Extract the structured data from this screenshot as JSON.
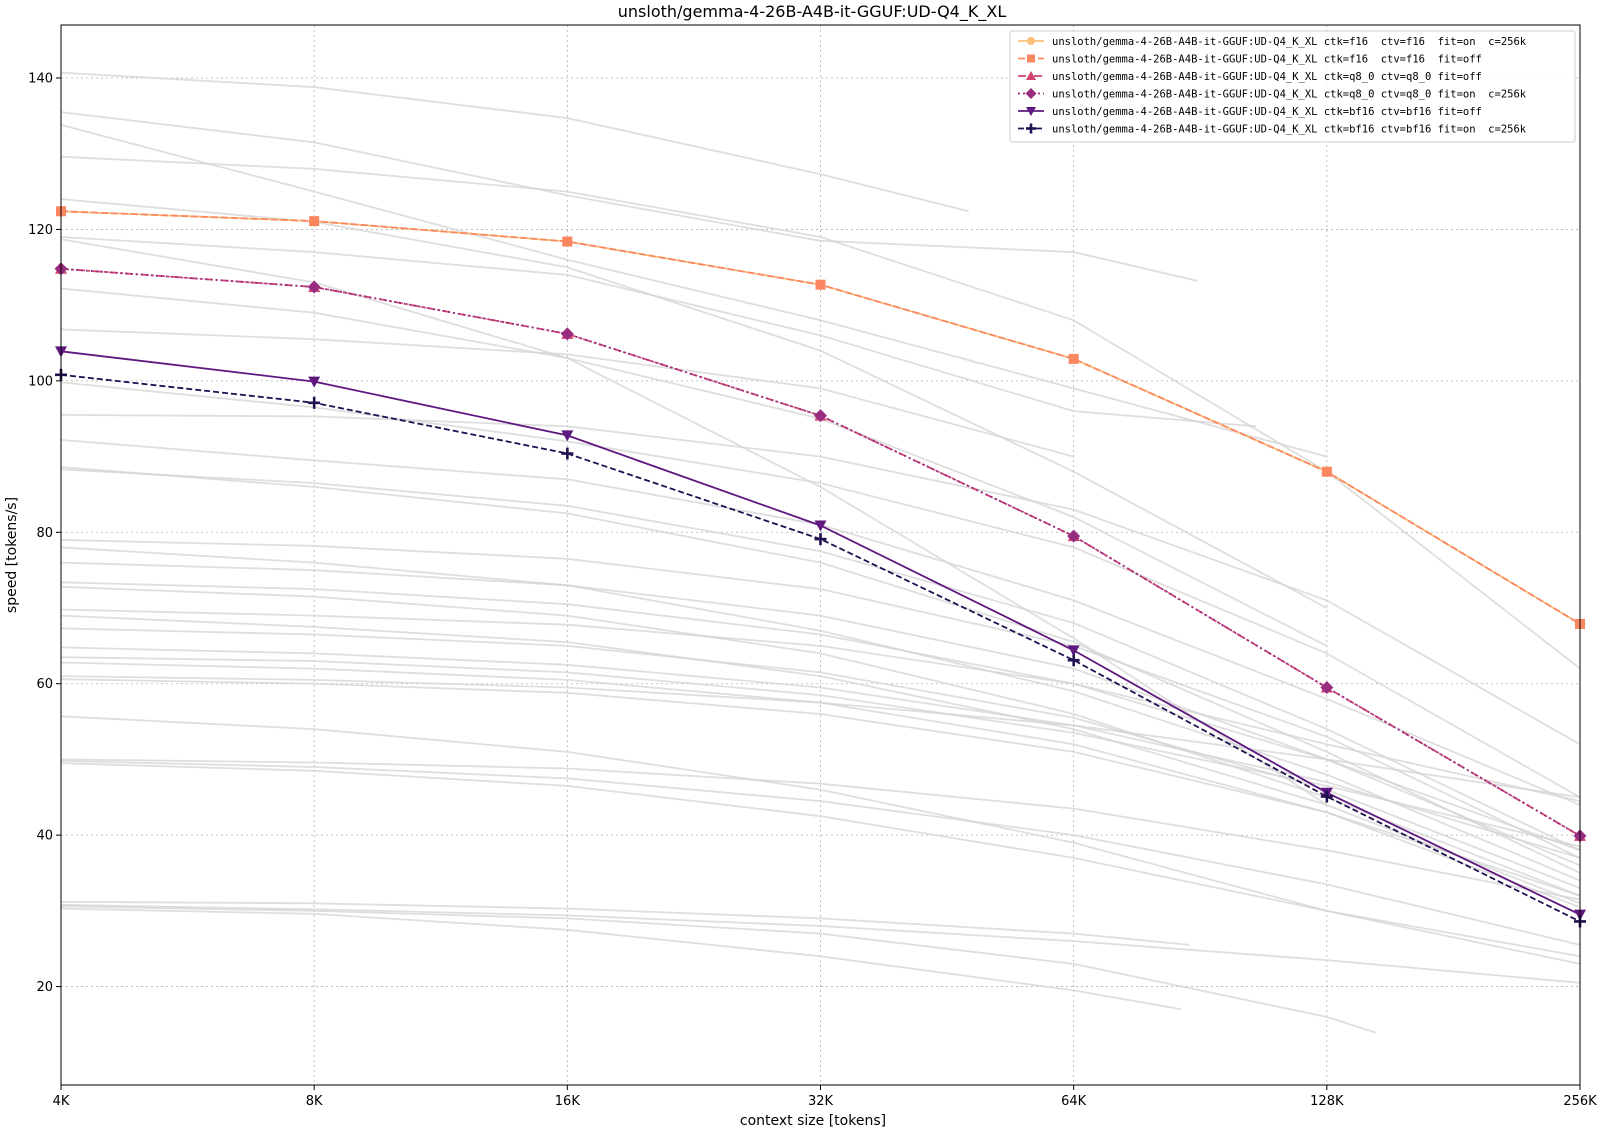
{
  "chart_data": {
    "type": "line",
    "title": "unsloth/gemma-4-26B-A4B-it-GGUF:UD-Q4_K_XL",
    "xlabel": "context size [tokens]",
    "ylabel": "speed [tokens/s]",
    "x_scale": "log2",
    "categories": [
      "4K",
      "8K",
      "16K",
      "32K",
      "64K",
      "128K",
      "256K"
    ],
    "x": [
      4096,
      8192,
      16384,
      32768,
      65536,
      131072,
      262144
    ],
    "ylim": [
      7,
      147
    ],
    "yticks": [
      20,
      40,
      60,
      80,
      100,
      120,
      140
    ],
    "grid": true,
    "legend_position": "top-right",
    "series": [
      {
        "name": "unsloth/gemma-4-26B-A4B-it-GGUF:UD-Q4_K_XL ctk=f16  ctv=f16  fit=on  c=256k",
        "color": "#fcbf7a",
        "dash": "none",
        "marker": "circle",
        "values": [
          122.4,
          121.1,
          118.4,
          112.7,
          102.9,
          88.0,
          67.9
        ]
      },
      {
        "name": "unsloth/gemma-4-26B-A4B-it-GGUF:UD-Q4_K_XL ctk=f16  ctv=f16  fit=off",
        "color": "#fb8761",
        "dash": "7,3",
        "marker": "square",
        "values": [
          122.4,
          121.1,
          118.4,
          112.7,
          102.9,
          88.0,
          67.9
        ]
      },
      {
        "name": "unsloth/gemma-4-26B-A4B-it-GGUF:UD-Q4_K_XL ctk=q8_0 ctv=q8_0 fit=off",
        "color": "#d3436e",
        "dash": "8,3,2,3",
        "marker": "triangle-up",
        "values": [
          114.8,
          112.4,
          106.2,
          95.4,
          79.5,
          59.5,
          39.9
        ]
      },
      {
        "name": "unsloth/gemma-4-26B-A4B-it-GGUF:UD-Q4_K_XL ctk=q8_0 ctv=q8_0 fit=on  c=256k",
        "color": "#982d80",
        "dash": "2,3",
        "marker": "diamond",
        "values": [
          114.8,
          112.4,
          106.2,
          95.4,
          79.5,
          59.5,
          39.9
        ]
      },
      {
        "name": "unsloth/gemma-4-26B-A4B-it-GGUF:UD-Q4_K_XL ctk=bf16 ctv=bf16 fit=off",
        "color": "#5f187f",
        "dash": "none",
        "marker": "triangle-down",
        "values": [
          103.9,
          99.9,
          92.8,
          80.9,
          64.4,
          45.6,
          29.5
        ]
      },
      {
        "name": "unsloth/gemma-4-26B-A4B-it-GGUF:UD-Q4_K_XL ctk=bf16 ctv=bf16 fit=on  c=256k",
        "color": "#221150",
        "dash": "6,3",
        "marker": "plus",
        "values": [
          100.8,
          97.1,
          90.4,
          79.1,
          63.1,
          45.1,
          28.6
        ]
      }
    ],
    "background_series_color": "#d3d3d3",
    "background_series": [
      {
        "x": [
          4096,
          8192,
          16384,
          32768,
          49152
        ],
        "values": [
          140.7,
          138.8,
          134.7,
          127.3,
          122.4
        ]
      },
      {
        "x": [
          4096,
          8192,
          16384,
          32768,
          65536,
          92000
        ],
        "values": [
          135.5,
          131.5,
          124.5,
          118.5,
          117.0,
          113.2
        ]
      },
      {
        "x": [
          4096,
          8192,
          16384,
          32768,
          65536,
          131072
        ],
        "values": [
          133.8,
          125.0,
          116.0,
          108.0,
          99.0,
          90.0
        ]
      },
      {
        "x": [
          4096,
          8192,
          16384,
          32768,
          65536,
          131072,
          262144
        ],
        "values": [
          129.6,
          128.0,
          125.0,
          119.0,
          108.0,
          88.0,
          62.0
        ]
      },
      {
        "x": [
          4096,
          8192,
          16384,
          32768,
          65536,
          131072
        ],
        "values": [
          124.0,
          121.0,
          115.0,
          104.0,
          88.0,
          70.0
        ]
      },
      {
        "x": [
          4096,
          8192,
          16384,
          32768,
          65536,
          108000
        ],
        "values": [
          119.0,
          117.0,
          114.0,
          106.0,
          96.0,
          94.0
        ]
      },
      {
        "x": [
          4096,
          8192,
          16384,
          32768,
          65536,
          131072
        ],
        "values": [
          118.7,
          113.0,
          103.0,
          86.0,
          66.0,
          44.0
        ]
      },
      {
        "x": [
          4096,
          8192,
          16384,
          32768,
          65536,
          131072
        ],
        "values": [
          112.2,
          109.0,
          103.0,
          95.0,
          82.0,
          65.0
        ]
      },
      {
        "x": [
          4096,
          8192,
          16384,
          32768,
          65536
        ],
        "values": [
          106.8,
          105.5,
          103.5,
          99.0,
          90.0
        ]
      },
      {
        "x": [
          4096,
          8192,
          16384,
          32768,
          65536,
          131072,
          262144
        ],
        "values": [
          99.8,
          96.5,
          92.0,
          86.5,
          78.0,
          64.0,
          45.0
        ]
      },
      {
        "x": [
          4096,
          8192,
          16384,
          32768,
          65536,
          131072,
          262144
        ],
        "values": [
          95.5,
          95.3,
          94.0,
          90.0,
          83.0,
          71.0,
          52.0
        ]
      },
      {
        "x": [
          4096,
          8192,
          16384,
          32768,
          65536,
          131072,
          262144
        ],
        "values": [
          92.2,
          89.5,
          87.0,
          81.0,
          71.0,
          58.0,
          44.0
        ]
      },
      {
        "x": [
          4096,
          8192,
          16384,
          32768,
          65536,
          131072,
          262144
        ],
        "values": [
          88.6,
          86.0,
          82.5,
          76.0,
          65.5,
          51.0,
          35.0
        ]
      },
      {
        "x": [
          4096,
          8192,
          16384,
          32768,
          65536,
          131072,
          262144
        ],
        "values": [
          88.3,
          86.5,
          83.5,
          77.5,
          68.0,
          54.0,
          38.0
        ]
      },
      {
        "x": [
          4096,
          8192,
          16384,
          32768,
          65536,
          131072,
          262144
        ],
        "values": [
          79.0,
          78.2,
          76.5,
          72.5,
          65.0,
          53.0,
          37.0
        ]
      },
      {
        "x": [
          4096,
          8192,
          16384,
          32768,
          65536,
          131072,
          262144
        ],
        "values": [
          78.0,
          76.0,
          73.0,
          67.0,
          59.0,
          48.0,
          34.0
        ]
      },
      {
        "x": [
          4096,
          8192,
          16384,
          32768,
          65536,
          131072,
          262144
        ],
        "values": [
          76.0,
          75.0,
          73.0,
          69.0,
          62.0,
          50.0,
          36.0
        ]
      },
      {
        "x": [
          4096,
          8192,
          16384,
          32768,
          65536,
          131072,
          262144
        ],
        "values": [
          73.4,
          72.5,
          70.5,
          66.5,
          60.0,
          50.0,
          38.0
        ]
      },
      {
        "x": [
          4096,
          8192,
          16384,
          32768,
          65536,
          131072,
          262144
        ],
        "values": [
          72.8,
          71.5,
          69.0,
          64.0,
          56.0,
          45.0,
          32.0
        ]
      },
      {
        "x": [
          4096,
          8192,
          16384,
          32768,
          65536,
          131072,
          262144
        ],
        "values": [
          69.8,
          69.0,
          67.8,
          65.0,
          60.0,
          52.0,
          44.5
        ]
      },
      {
        "x": [
          4096,
          8192,
          16384,
          32768,
          65536,
          131072,
          262144
        ],
        "values": [
          69.0,
          67.5,
          65.5,
          61.0,
          54.0,
          44.0,
          31.0
        ]
      },
      {
        "x": [
          4096,
          8192,
          16384,
          32768,
          65536,
          131072,
          262144
        ],
        "values": [
          67.3,
          66.5,
          65.0,
          61.5,
          55.5,
          46.0,
          33.0
        ]
      },
      {
        "x": [
          4096,
          8192,
          16384,
          32768,
          65536,
          131072,
          262144
        ],
        "values": [
          64.8,
          64.0,
          62.5,
          59.5,
          54.5,
          47.0,
          37.0
        ]
      },
      {
        "x": [
          4096,
          8192,
          16384,
          32768,
          65536,
          131072,
          262144
        ],
        "values": [
          62.8,
          62.0,
          60.5,
          57.5,
          52.0,
          43.0,
          30.5
        ]
      },
      {
        "x": [
          4096,
          8192,
          16384,
          32768,
          65536,
          131072,
          262144
        ],
        "values": [
          60.6,
          60.0,
          58.8,
          56.0,
          51.0,
          43.0,
          32.0
        ]
      },
      {
        "x": [
          4096,
          8192,
          16384,
          32768,
          65536,
          131072,
          262144
        ],
        "values": [
          55.7,
          54.0,
          51.0,
          46.0,
          39.0,
          30.0,
          24.0
        ]
      },
      {
        "x": [
          4096,
          8192,
          16384,
          32768,
          65536,
          131072,
          262144
        ],
        "values": [
          50.0,
          49.6,
          48.8,
          46.8,
          43.5,
          38.0,
          31.5
        ]
      },
      {
        "x": [
          4096,
          8192,
          16384,
          32768,
          65536,
          131072,
          262144
        ],
        "values": [
          49.8,
          49.0,
          47.5,
          44.5,
          40.0,
          33.5,
          25.5
        ]
      },
      {
        "x": [
          4096,
          8192,
          16384,
          32768,
          65536,
          131072,
          262144
        ],
        "values": [
          49.5,
          48.5,
          46.5,
          42.5,
          37.0,
          30.0,
          23.0
        ]
      },
      {
        "x": [
          4096,
          8192,
          16384,
          32768,
          65536,
          131072,
          262144
        ],
        "values": [
          61.0,
          60.5,
          59.5,
          57.5,
          54.5,
          50.0,
          45.0
        ]
      },
      {
        "x": [
          4096,
          8192,
          16384,
          32768,
          65536,
          131072,
          262144
        ],
        "values": [
          63.5,
          63.0,
          61.5,
          58.5,
          53.5,
          46.5,
          38.5
        ]
      },
      {
        "x": [
          4096,
          8192,
          16384,
          32768,
          65536,
          90000
        ],
        "values": [
          31.2,
          31.0,
          30.3,
          29.0,
          27.0,
          25.5
        ]
      },
      {
        "x": [
          4096,
          8192,
          16384,
          32768,
          65536,
          131072,
          262144
        ],
        "values": [
          30.8,
          30.2,
          29.4,
          28.0,
          26.0,
          23.5,
          20.5
        ]
      },
      {
        "x": [
          4096,
          8192,
          16384,
          32768,
          65536,
          88000
        ],
        "values": [
          30.3,
          29.6,
          27.5,
          24.0,
          19.5,
          17.0
        ]
      },
      {
        "x": [
          4096,
          8192,
          16384,
          32768,
          65536,
          131072,
          150000
        ],
        "values": [
          30.6,
          30.0,
          29.0,
          27.0,
          23.0,
          16.0,
          13.9
        ]
      }
    ]
  }
}
